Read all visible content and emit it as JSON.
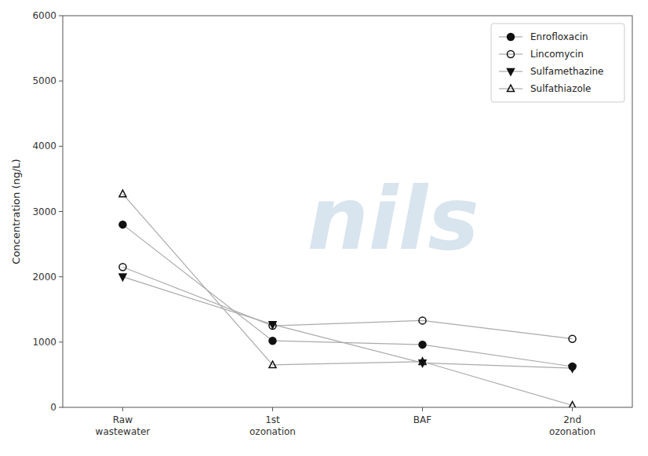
{
  "chart_data": {
    "type": "line",
    "categories": [
      "Raw\nwastewater",
      "1st\nozonation",
      "BAF",
      "2nd\nozonation"
    ],
    "series": [
      {
        "name": "Enrofloxacin",
        "values": [
          2800,
          1020,
          960,
          625
        ],
        "marker": "circle",
        "color": "#111111"
      },
      {
        "name": "Lincomycin",
        "values": [
          2150,
          1250,
          1330,
          1050
        ],
        "marker": "circle-open",
        "color": "#111111"
      },
      {
        "name": "Sulfamethazine",
        "values": [
          2000,
          1270,
          680,
          600
        ],
        "marker": "triangle-down",
        "color": "#111111"
      },
      {
        "name": "Sulfathiazole",
        "values": [
          3270,
          650,
          700,
          30
        ],
        "marker": "triangle-up-open",
        "color": "#111111"
      }
    ],
    "y_label": "Concentration (ng/L)",
    "annotations": [
      "nils"
    ],
    "ylim": [
      0,
      6000
    ],
    "yticks": [
      0,
      1000,
      2000,
      3000,
      4000,
      5000,
      6000
    ],
    "grid": false,
    "legend": "upper right"
  }
}
